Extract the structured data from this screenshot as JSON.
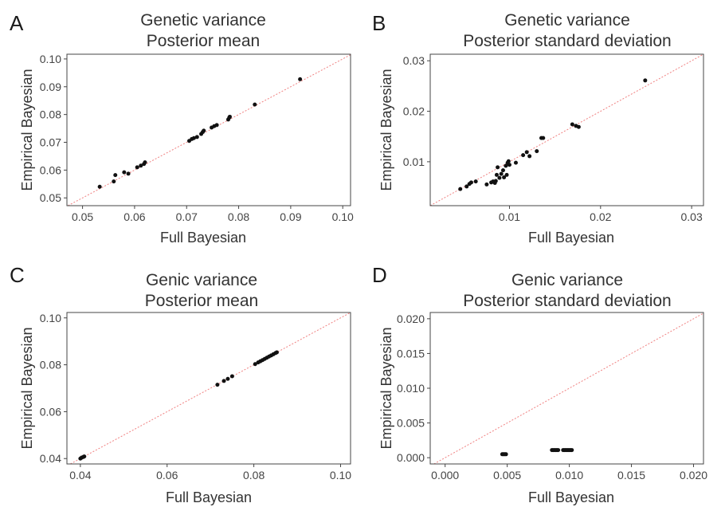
{
  "colors": {
    "points": "#111111",
    "identity_line": "#f08080",
    "axis": "#444444",
    "text": "#333333"
  },
  "chart_data": [
    {
      "type": "scatter",
      "panel": "A",
      "title": [
        "Genetic variance",
        "Posterior mean"
      ],
      "xlabel": "Full Bayesian",
      "ylabel": "Empirical Bayesian",
      "xlim": [
        0.047,
        0.1015
      ],
      "ylim": [
        0.0472,
        0.1017
      ],
      "xticks": [
        0.05,
        0.06,
        0.07,
        0.08,
        0.09,
        0.1
      ],
      "yticks": [
        0.05,
        0.06,
        0.07,
        0.08,
        0.09,
        0.1
      ],
      "xtick_labels": [
        "0.05",
        "0.06",
        "0.07",
        "0.08",
        "0.09",
        "0.10"
      ],
      "ytick_labels": [
        "0.05",
        "0.06",
        "0.07",
        "0.08",
        "0.09",
        "0.10"
      ],
      "reference_line": "y = x",
      "grid": false,
      "points": [
        [
          0.0533,
          0.054
        ],
        [
          0.056,
          0.0559
        ],
        [
          0.0563,
          0.0582
        ],
        [
          0.058,
          0.0592
        ],
        [
          0.0588,
          0.0587
        ],
        [
          0.0605,
          0.061
        ],
        [
          0.0612,
          0.0616
        ],
        [
          0.0618,
          0.0622
        ],
        [
          0.062,
          0.0628
        ],
        [
          0.0705,
          0.0705
        ],
        [
          0.071,
          0.0712
        ],
        [
          0.0714,
          0.0715
        ],
        [
          0.072,
          0.0719
        ],
        [
          0.0728,
          0.073
        ],
        [
          0.0731,
          0.0737
        ],
        [
          0.0733,
          0.0742
        ],
        [
          0.0748,
          0.0753
        ],
        [
          0.0753,
          0.0758
        ],
        [
          0.0758,
          0.0762
        ],
        [
          0.078,
          0.0782
        ],
        [
          0.0782,
          0.0789
        ],
        [
          0.0783,
          0.0792
        ],
        [
          0.0831,
          0.0836
        ],
        [
          0.0918,
          0.0927
        ]
      ]
    },
    {
      "type": "scatter",
      "panel": "B",
      "title": [
        "Genetic variance",
        "Posterior standard deviation"
      ],
      "xlabel": "Full Bayesian",
      "ylabel": "Empirical Bayesian",
      "xlim": [
        0.0013,
        0.0313
      ],
      "ylim": [
        0.0013,
        0.0313
      ],
      "xticks": [
        0.01,
        0.02,
        0.03
      ],
      "yticks": [
        0.01,
        0.02,
        0.03
      ],
      "xtick_labels": [
        "0.01",
        "0.02",
        "0.03"
      ],
      "ytick_labels": [
        "0.01",
        "0.02",
        "0.03"
      ],
      "reference_line": "y = x",
      "grid": false,
      "points": [
        [
          0.0046,
          0.0046
        ],
        [
          0.0053,
          0.0051
        ],
        [
          0.0056,
          0.0056
        ],
        [
          0.0058,
          0.0059
        ],
        [
          0.0063,
          0.0061
        ],
        [
          0.0075,
          0.0055
        ],
        [
          0.008,
          0.0059
        ],
        [
          0.0082,
          0.0061
        ],
        [
          0.0084,
          0.0058
        ],
        [
          0.0085,
          0.0062
        ],
        [
          0.0086,
          0.0074
        ],
        [
          0.0087,
          0.0089
        ],
        [
          0.0089,
          0.0068
        ],
        [
          0.0091,
          0.0076
        ],
        [
          0.0093,
          0.0083
        ],
        [
          0.0094,
          0.0069
        ],
        [
          0.0096,
          0.0092
        ],
        [
          0.0097,
          0.0074
        ],
        [
          0.0098,
          0.0098
        ],
        [
          0.0099,
          0.0101
        ],
        [
          0.01,
          0.0094
        ],
        [
          0.0107,
          0.0098
        ],
        [
          0.0115,
          0.0113
        ],
        [
          0.0119,
          0.0119
        ],
        [
          0.0122,
          0.0111
        ],
        [
          0.013,
          0.0121
        ],
        [
          0.0135,
          0.0147
        ],
        [
          0.0137,
          0.0147
        ],
        [
          0.0169,
          0.0174
        ],
        [
          0.0173,
          0.0171
        ],
        [
          0.0176,
          0.0169
        ],
        [
          0.0249,
          0.0261
        ]
      ]
    },
    {
      "type": "scatter",
      "panel": "C",
      "title": [
        "Genic variance",
        "Posterior mean"
      ],
      "xlabel": "Full Bayesian",
      "ylabel": "Empirical Bayesian",
      "xlim": [
        0.0369,
        0.1023
      ],
      "ylim": [
        0.0377,
        0.1023
      ],
      "xticks": [
        0.04,
        0.06,
        0.08,
        0.1
      ],
      "yticks": [
        0.04,
        0.06,
        0.08,
        0.1
      ],
      "xtick_labels": [
        "0.04",
        "0.06",
        "0.08",
        "0.10"
      ],
      "ytick_labels": [
        "0.04",
        "0.06",
        "0.08",
        "0.10"
      ],
      "reference_line": "y = x",
      "grid": false,
      "points": [
        [
          0.04,
          0.04
        ],
        [
          0.0403,
          0.0404
        ],
        [
          0.0407,
          0.0407
        ],
        [
          0.0409,
          0.0409
        ],
        [
          0.0716,
          0.0715
        ],
        [
          0.0731,
          0.0731
        ],
        [
          0.074,
          0.074
        ],
        [
          0.075,
          0.0751
        ],
        [
          0.0803,
          0.0803
        ],
        [
          0.081,
          0.081
        ],
        [
          0.0815,
          0.0815
        ],
        [
          0.082,
          0.082
        ],
        [
          0.0825,
          0.0825
        ],
        [
          0.083,
          0.083
        ],
        [
          0.0835,
          0.0835
        ],
        [
          0.084,
          0.084
        ],
        [
          0.0845,
          0.0845
        ],
        [
          0.085,
          0.085
        ],
        [
          0.0853,
          0.0853
        ]
      ]
    },
    {
      "type": "scatter",
      "panel": "D",
      "title": [
        "Genic variance",
        "Posterior standard deviation"
      ],
      "xlabel": "Full Bayesian",
      "ylabel": "Empirical Bayesian",
      "xlim": [
        -0.0012,
        0.0208
      ],
      "ylim": [
        -0.0009,
        0.0209
      ],
      "xticks": [
        0.0,
        0.005,
        0.01,
        0.015,
        0.02
      ],
      "yticks": [
        0.0,
        0.005,
        0.01,
        0.015,
        0.02
      ],
      "xtick_labels": [
        "0.000",
        "0.005",
        "0.010",
        "0.015",
        "0.020"
      ],
      "ytick_labels": [
        "0.000",
        "0.005",
        "0.010",
        "0.015",
        "0.020"
      ],
      "reference_line": "y = x",
      "grid": false,
      "points": [
        [
          0.0046,
          0.0005
        ],
        [
          0.0047,
          0.0005
        ],
        [
          0.0048,
          0.0005
        ],
        [
          0.0049,
          0.0005
        ],
        [
          0.0086,
          0.0011
        ],
        [
          0.0087,
          0.0011
        ],
        [
          0.0088,
          0.0011
        ],
        [
          0.0089,
          0.0011
        ],
        [
          0.009,
          0.0011
        ],
        [
          0.0091,
          0.0011
        ],
        [
          0.0095,
          0.0011
        ],
        [
          0.0096,
          0.0011
        ],
        [
          0.0097,
          0.0011
        ],
        [
          0.0098,
          0.0011
        ],
        [
          0.0099,
          0.0011
        ],
        [
          0.01,
          0.0011
        ],
        [
          0.0101,
          0.0011
        ],
        [
          0.0102,
          0.0011
        ]
      ]
    }
  ]
}
